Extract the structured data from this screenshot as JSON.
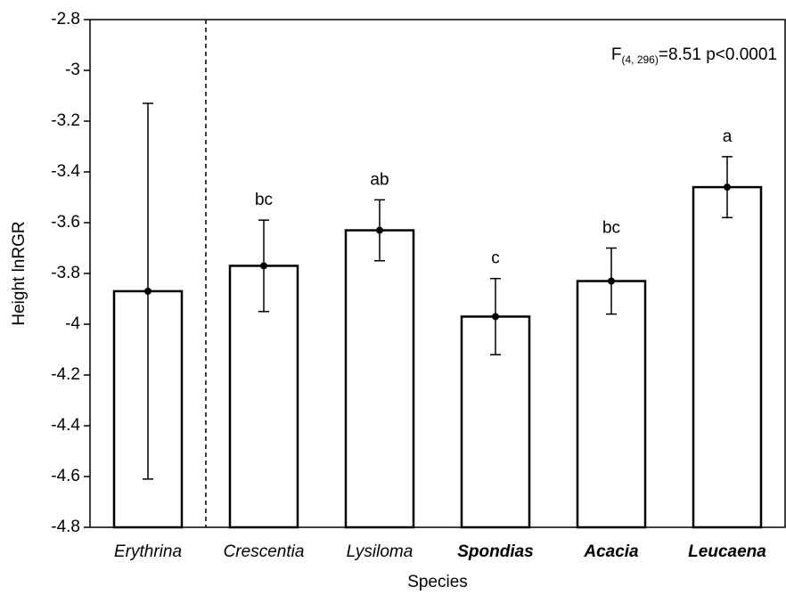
{
  "chart_data": {
    "type": "bar",
    "x_label": "Species",
    "y_label": "Height lnRGR",
    "annotation": {
      "main": "F",
      "subscript": "(4, 296)",
      "rest": "=8.51 p<0.0001"
    },
    "categories": [
      "Erythrina",
      "Crescentia",
      "Lysiloma",
      "Spondias",
      "Acacia",
      "Leucaena"
    ],
    "bold_categories": [
      false,
      false,
      false,
      true,
      true,
      true
    ],
    "values": [
      -3.87,
      -3.77,
      -3.63,
      -3.97,
      -3.83,
      -3.46
    ],
    "errors": [
      0.74,
      0.18,
      0.12,
      0.15,
      0.13,
      0.12
    ],
    "letters": [
      null,
      "bc",
      "ab",
      "c",
      "bc",
      "a"
    ],
    "color": "#ffffff",
    "divider_after": 0,
    "ylim": [
      -4.8,
      -2.8
    ],
    "yticks": [
      -4.8,
      -4.6,
      -4.4,
      -4.2,
      -4.0,
      -3.8,
      -3.6,
      -3.4,
      -3.2,
      -3.0,
      -2.8
    ]
  }
}
